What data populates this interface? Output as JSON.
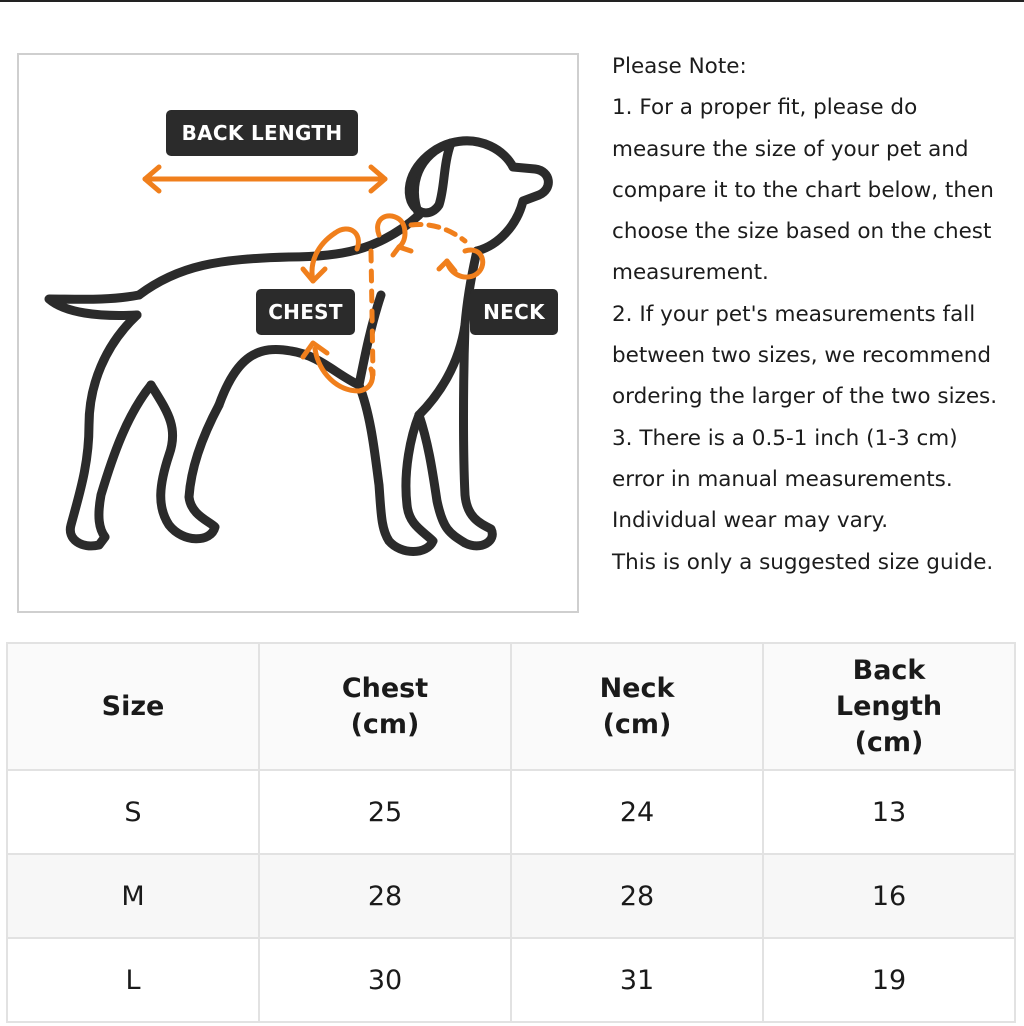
{
  "diagram": {
    "labels": {
      "back_length": "BACK LENGTH",
      "chest": "CHEST",
      "neck": "NECK"
    },
    "colors": {
      "outline": "#2b2b2b",
      "arrow": "#f07f1c",
      "tag_bg": "#2b2b2b"
    },
    "icons": [
      "dog-outline-icon",
      "back-length-arrow-icon",
      "chest-arrow-icon",
      "neck-arrow-icon"
    ]
  },
  "notes": {
    "heading": "Please Note:",
    "lines": [
      "1. For a proper fit, please do",
      "measure the size of your pet and",
      "compare it to the chart below, then",
      "choose the size based on the chest",
      "measurement.",
      "2. If your pet's measurements fall",
      "between two sizes, we recommend",
      "ordering the larger of the two sizes.",
      "3. There is a 0.5-1 inch (1-3 cm)",
      "error in manual measurements.",
      "Individual wear may vary.",
      "This is only a suggested size guide."
    ]
  },
  "table": {
    "headers": {
      "size": "Size",
      "chest_1": "Chest",
      "chest_2": "(cm)",
      "neck_1": "Neck",
      "neck_2": "(cm)",
      "back_1": "Back",
      "back_2": "Length",
      "back_3": "(cm)"
    },
    "rows": [
      [
        "S",
        "25",
        "24",
        "13"
      ],
      [
        "M",
        "28",
        "28",
        "16"
      ],
      [
        "L",
        "30",
        "31",
        "19"
      ]
    ]
  }
}
